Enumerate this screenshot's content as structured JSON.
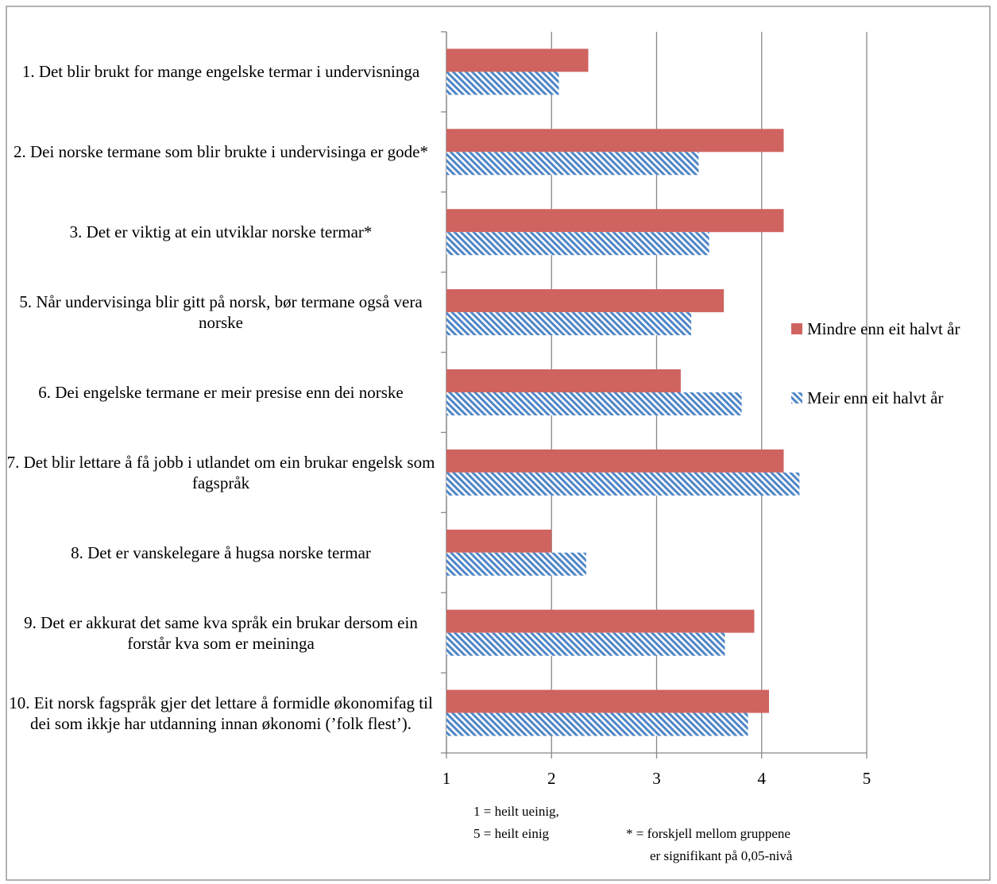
{
  "chart_data": {
    "type": "bar",
    "orientation": "horizontal",
    "categories": [
      "1. Det blir brukt for mange engelske termar i undervisninga",
      "2. Dei norske termane som blir brukte i undervisinga er gode*",
      "3. Det er viktig at ein utviklar norske termar*",
      "5. Når undervisinga blir gitt på norsk, bør termane også vera norske",
      "6. Dei engelske termane er meir presise enn dei norske",
      "7. Det blir lettare å få jobb i utlandet om ein brukar engelsk som fagspråk",
      "8. Det er vanskelegare å hugsa norske termar",
      "9. Det er akkurat det same kva språk ein brukar dersom ein forstår kva som er meininga",
      "10. Eit norsk fagspråk gjer det lettare å formidle økonomifag til dei som ikkje har utdanning innan økonomi (’folk flest’)."
    ],
    "series": [
      {
        "name": "Mindre enn eit halvt år",
        "color": "#cf6360",
        "fill": "solid",
        "values": [
          2.35,
          4.21,
          4.21,
          3.64,
          3.23,
          4.21,
          2.0,
          3.93,
          4.07
        ]
      },
      {
        "name": "Meir enn eit halvt år",
        "color": "#4f86c6",
        "fill": "hatched",
        "values": [
          2.07,
          3.4,
          3.5,
          3.33,
          3.81,
          4.36,
          2.33,
          3.65,
          3.87
        ]
      }
    ],
    "xlim": [
      1,
      5
    ],
    "xticks": [
      1,
      2,
      3,
      4,
      5
    ],
    "grid": true,
    "legend": "right",
    "annotations": [
      "1 = heilt ueinig,",
      "5 = heilt einig",
      "* =  forskjell mellom gruppene",
      "er signifikant  på 0,05-nivå"
    ]
  }
}
